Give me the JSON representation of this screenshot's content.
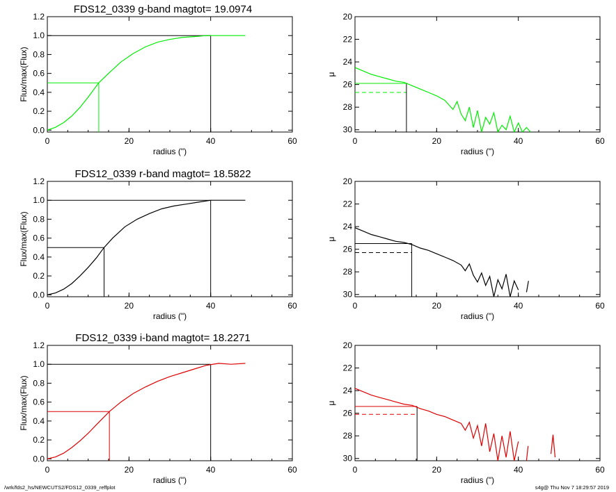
{
  "footer": {
    "path": "/wrk/fds2_hs/NEWCUTS2/FDS12_0339_reffplot",
    "stamp": "s4g@  Thu Nov  7 18:29:57 2019"
  },
  "chart_data": [
    {
      "type": "line",
      "title": "FDS12_0339 g-band  magtot=      19.0974",
      "xlabel": "radius (\")",
      "ylabel": "Flux/max(Flux)",
      "xlim": [
        0,
        60
      ],
      "ylim": [
        -0.02,
        1.2
      ],
      "xticks": [
        "0",
        "20",
        "40",
        "60"
      ],
      "yticks": [
        "0.0",
        "0.2",
        "0.4",
        "0.6",
        "0.8",
        "1.0",
        "1.2"
      ],
      "color": "#00ee00",
      "series": [
        {
          "x": [
            0,
            2,
            4,
            6,
            8,
            10,
            12.6,
            15,
            18,
            21,
            24,
            27,
            30,
            33,
            36,
            39,
            42,
            45,
            48.5
          ],
          "values": [
            0,
            0.03,
            0.08,
            0.15,
            0.24,
            0.35,
            0.5,
            0.6,
            0.72,
            0.81,
            0.88,
            0.93,
            0.96,
            0.98,
            0.99,
            1.0,
            1.0,
            1.0,
            1.0
          ]
        }
      ],
      "markers": {
        "half_light_radius": 12.6,
        "half_level": 0.5,
        "total_radius": 40,
        "total_level": 1.0
      }
    },
    {
      "type": "line",
      "xlabel": "radius (\")",
      "ylabel": "μ",
      "xlim": [
        0,
        60
      ],
      "ylim": [
        30.2,
        20
      ],
      "y_reversed": true,
      "xticks": [
        "0",
        "20",
        "40",
        "60"
      ],
      "yticks": [
        "20",
        "22",
        "24",
        "26",
        "28",
        "30"
      ],
      "color": "#00ee00",
      "series": [
        {
          "x": [
            0,
            2,
            4,
            6,
            8,
            10,
            12,
            14,
            16,
            18,
            20,
            22,
            23,
            24,
            25,
            26,
            27,
            28,
            29,
            30,
            31,
            32,
            33,
            34,
            35,
            36,
            37,
            38,
            39,
            40,
            41,
            42,
            43
          ],
          "values": [
            24.5,
            24.8,
            25.1,
            25.3,
            25.5,
            25.7,
            25.8,
            26.1,
            26.4,
            26.7,
            27.0,
            27.4,
            27.8,
            28.2,
            27.5,
            28.6,
            29.2,
            28.0,
            29.8,
            28.3,
            30.2,
            28.9,
            29.5,
            28.5,
            30.2,
            29.6,
            30.0,
            28.8,
            30.2,
            29.4,
            30.2,
            29.8,
            30.2
          ]
        }
      ],
      "markers": {
        "half_light_radius": 12.6,
        "mu_eff": 25.9,
        "mu_mean": 26.7
      }
    },
    {
      "type": "line",
      "title": "FDS12_0339 r-band  magtot=      18.5822",
      "xlabel": "radius (\")",
      "ylabel": "Flux/max(Flux)",
      "xlim": [
        0,
        60
      ],
      "ylim": [
        -0.02,
        1.2
      ],
      "xticks": [
        "0",
        "20",
        "40",
        "60"
      ],
      "yticks": [
        "0.0",
        "0.2",
        "0.4",
        "0.6",
        "0.8",
        "1.0",
        "1.2"
      ],
      "color": "#000000",
      "series": [
        {
          "x": [
            0,
            2,
            4,
            6,
            8,
            10,
            12,
            13.9,
            16,
            19,
            22,
            25,
            28,
            31,
            34,
            37,
            40,
            43,
            46,
            48.5
          ],
          "values": [
            0,
            0.02,
            0.06,
            0.12,
            0.2,
            0.29,
            0.39,
            0.5,
            0.6,
            0.72,
            0.8,
            0.86,
            0.91,
            0.94,
            0.96,
            0.98,
            1.0,
            1.0,
            1.0,
            1.0
          ]
        }
      ],
      "markers": {
        "half_light_radius": 13.9,
        "half_level": 0.5,
        "total_radius": 40,
        "total_level": 1.0
      }
    },
    {
      "type": "line",
      "xlabel": "radius (\")",
      "ylabel": "μ",
      "xlim": [
        0,
        60
      ],
      "ylim": [
        30.2,
        20
      ],
      "y_reversed": true,
      "xticks": [
        "0",
        "20",
        "40",
        "60"
      ],
      "yticks": [
        "20",
        "22",
        "24",
        "26",
        "28",
        "30"
      ],
      "color": "#000000",
      "series": [
        {
          "x": [
            0,
            2,
            4,
            6,
            8,
            10,
            12,
            14,
            16,
            18,
            20,
            22,
            24,
            26,
            27,
            28,
            29,
            30,
            31,
            32,
            33,
            34,
            35,
            36,
            37,
            38,
            39,
            40
          ],
          "values": [
            24.1,
            24.4,
            24.7,
            24.9,
            25.1,
            25.3,
            25.4,
            25.6,
            25.9,
            26.1,
            26.4,
            26.7,
            27.0,
            27.4,
            27.9,
            27.3,
            28.3,
            28.9,
            28.1,
            29.2,
            28.4,
            30.2,
            28.7,
            29.5,
            28.2,
            30.2,
            28.8,
            29.6
          ]
        },
        {
          "x": [
            42,
            42.5
          ],
          "values": [
            29.8,
            28.8
          ]
        }
      ],
      "markers": {
        "half_light_radius": 13.9,
        "mu_eff": 25.5,
        "mu_mean": 26.3
      }
    },
    {
      "type": "line",
      "title": "FDS12_0339 i-band  magtot=      18.2271",
      "xlabel": "radius (\")",
      "ylabel": "Flux/max(Flux)",
      "xlim": [
        0,
        60
      ],
      "ylim": [
        -0.02,
        1.2
      ],
      "xticks": [
        "0",
        "20",
        "40",
        "60"
      ],
      "yticks": [
        "0.0",
        "0.2",
        "0.4",
        "0.6",
        "0.8",
        "1.0",
        "1.2"
      ],
      "color": "#dd0000",
      "series": [
        {
          "x": [
            0,
            2,
            4,
            6,
            8,
            10,
            12,
            15.2,
            18,
            21,
            24,
            27,
            30,
            33,
            36,
            39,
            42,
            45,
            48.5
          ],
          "values": [
            0,
            0.02,
            0.06,
            0.12,
            0.19,
            0.27,
            0.36,
            0.5,
            0.6,
            0.69,
            0.76,
            0.82,
            0.87,
            0.91,
            0.95,
            0.99,
            1.01,
            1.0,
            1.01
          ]
        }
      ],
      "markers": {
        "half_light_radius": 15.2,
        "half_level": 0.5,
        "total_radius": 40,
        "total_level": 1.0
      }
    },
    {
      "type": "line",
      "xlabel": "radius (\")",
      "ylabel": "μ",
      "xlim": [
        0,
        60
      ],
      "ylim": [
        30.2,
        20
      ],
      "y_reversed": true,
      "xticks": [
        "0",
        "20",
        "40",
        "60"
      ],
      "yticks": [
        "20",
        "22",
        "24",
        "26",
        "28",
        "30"
      ],
      "color": "#dd0000",
      "series": [
        {
          "x": [
            0,
            2,
            4,
            6,
            8,
            10,
            12,
            14,
            16,
            18,
            20,
            22,
            24,
            26,
            27,
            28,
            29,
            30,
            31,
            32,
            33,
            34,
            35,
            36,
            37,
            38,
            39,
            40
          ],
          "values": [
            23.8,
            24.1,
            24.4,
            24.6,
            24.8,
            25.0,
            25.2,
            25.3,
            25.6,
            25.8,
            26.1,
            26.3,
            26.6,
            26.9,
            27.5,
            26.8,
            28.2,
            27.1,
            28.9,
            26.9,
            29.4,
            27.8,
            30.2,
            28.0,
            29.9,
            27.6,
            30.2,
            28.5
          ]
        },
        {
          "x": [
            42,
            42.4
          ],
          "values": [
            30.2,
            28.9
          ]
        },
        {
          "x": [
            48,
            48.5,
            49
          ],
          "values": [
            29.6,
            27.9,
            29.9
          ]
        }
      ],
      "markers": {
        "half_light_radius": 15.2,
        "mu_eff": 25.4,
        "mu_mean": 26.1
      }
    }
  ]
}
